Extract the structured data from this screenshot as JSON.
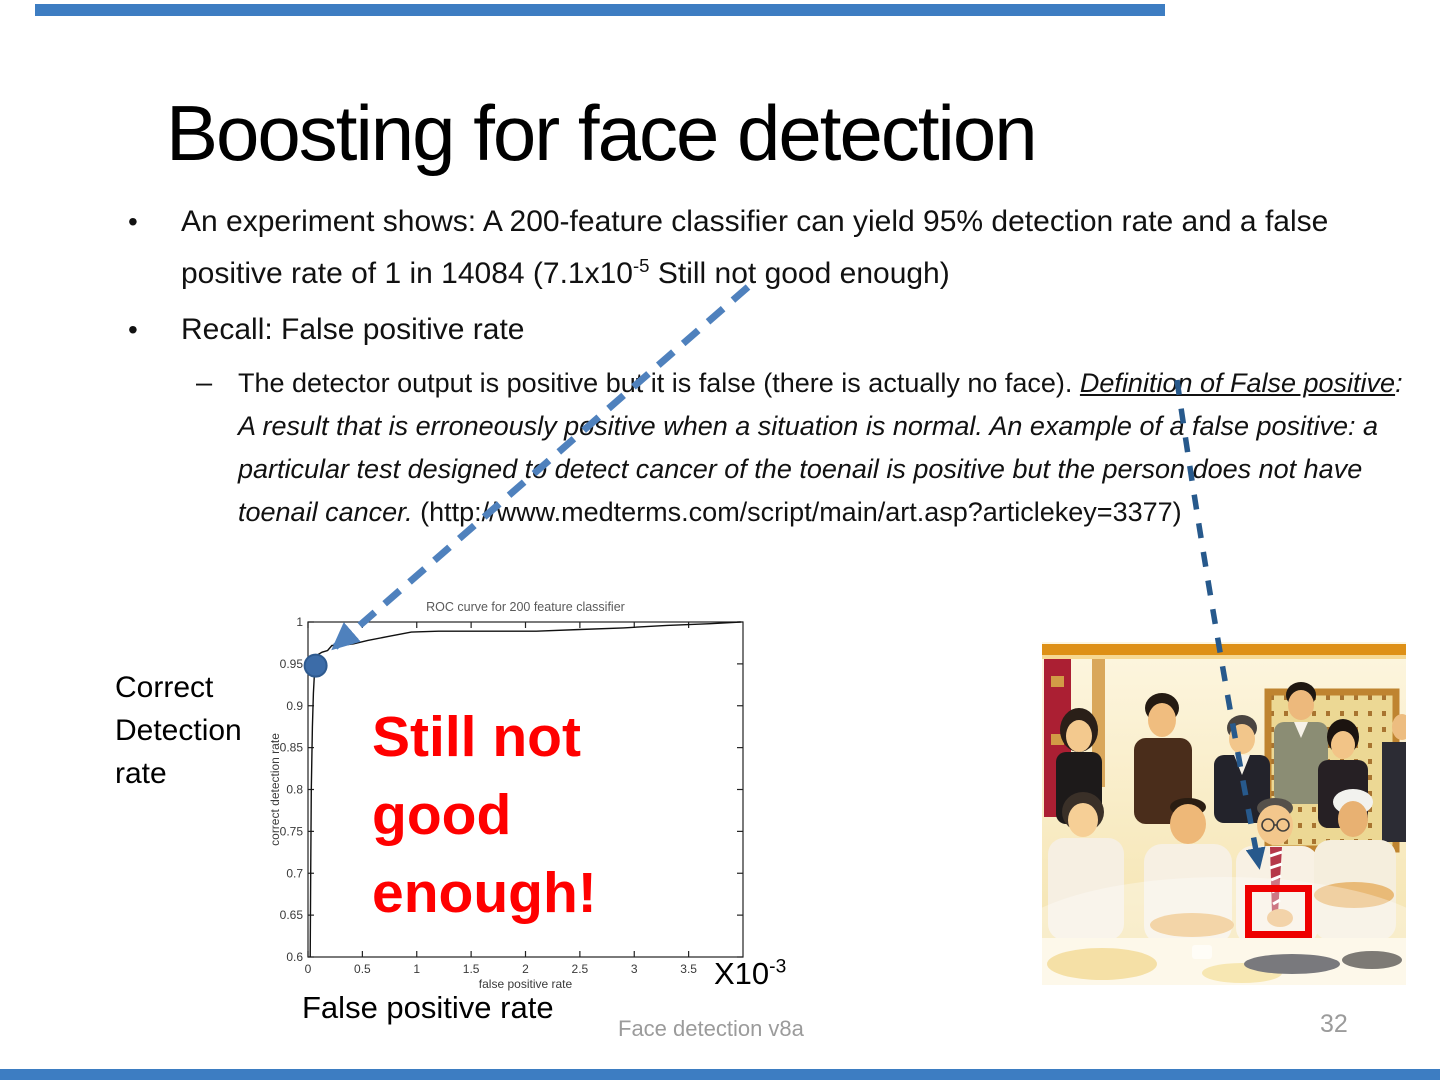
{
  "slide": {
    "title": "Boosting for face detection",
    "bullet_glyph": "•",
    "sub_dash_glyph": "–",
    "bullet1": {
      "pre": "An experiment shows: A 200-feature classifier can yield 95% detection rate and a false positive rate of 1 in 14084 (7.1x10",
      "sup": "-5",
      "post": " Still not good enough)"
    },
    "bullet2": "Recall: False positive rate",
    "sub": {
      "plain": "The detector output is positive but it is false (there is actually no face). ",
      "underline_italic": "Definition of False positive",
      "italic": ": A result that is erroneously positive when a situation is normal. An example of a false positive: a particular test designed to detect cancer of the toenail is positive but the person does not have toenail cancer.",
      "url": " (http://www.medterms.com/script/main/art.asp?articlekey=3377)"
    },
    "left_axis_label": "Correct\nDetection\nrate",
    "overlay_text": "Still not\ngood\nenough!",
    "x_axis_label_big": "False positive rate",
    "multiplier_base": "X10",
    "multiplier_exp": "-3",
    "footer": {
      "doc": "Face detection v8a",
      "page": "32"
    },
    "colors": {
      "arrow_blue": "#4F81BD",
      "arrow_dark_blue": "#27598C",
      "alert_red": "#FF0000",
      "highlight_box_red": "#EE0000",
      "footer_gray": "#9B9B9B",
      "accent_bar_blue": "#3D7DC2"
    }
  },
  "chart_data": {
    "type": "line",
    "title": "ROC curve for 200 feature classifier",
    "xlabel": "false positive rate",
    "ylabel": "correct detection rate",
    "x_unit_multiplier": "1e-3",
    "xlim": [
      0,
      4.0
    ],
    "ylim": [
      0.6,
      1.0
    ],
    "x_ticks": [
      0,
      0.5,
      1,
      1.5,
      2,
      2.5,
      3,
      3.5
    ],
    "y_ticks": [
      0.6,
      0.65,
      0.7,
      0.75,
      0.8,
      0.85,
      0.9,
      0.95,
      1
    ],
    "grid": false,
    "series": [
      {
        "name": "ROC curve (200 feature classifier)",
        "x": [
          0.02,
          0.025,
          0.03,
          0.04,
          0.05,
          0.06,
          0.07,
          0.09,
          0.13,
          0.18,
          0.22,
          0.3,
          0.42,
          0.55,
          0.75,
          0.95,
          1.2,
          1.7,
          2.1,
          2.5,
          2.9,
          3.3,
          3.7,
          3.98
        ],
        "y": [
          0.6,
          0.7,
          0.8,
          0.875,
          0.915,
          0.94,
          0.952,
          0.961,
          0.964,
          0.966,
          0.972,
          0.972,
          0.974,
          0.978,
          0.983,
          0.988,
          0.989,
          0.989,
          0.989,
          0.991,
          0.993,
          0.996,
          0.998,
          1.0
        ]
      }
    ],
    "highlight_marker": {
      "x": 0.07,
      "y": 0.948,
      "color": "#3C6CA8"
    }
  }
}
